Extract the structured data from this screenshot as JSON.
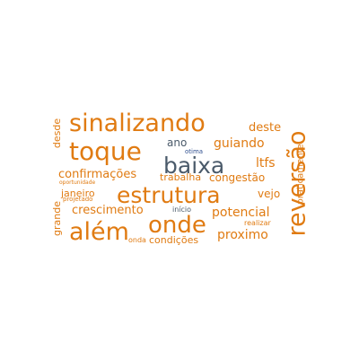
{
  "colors": {
    "orange": "#e07b12",
    "slate": "#4a5a6a",
    "navy": "#2f4f8f",
    "background": "#ffffff"
  },
  "words": {
    "sinalizando": "sinalizando",
    "deste": "deste",
    "toque": "toque",
    "ano": "ano",
    "guiando": "guiando",
    "desde": "desde",
    "otima": "otima",
    "baixa": "baixa",
    "ltfs": "ltfs",
    "reversao": "reversão",
    "praticamente": "praticamente",
    "confirmacoes": "confirmações",
    "trabalha": "trabalha",
    "congestao": "congestão",
    "oportunidade": "oportunidade",
    "janeiro": "janeiro",
    "estrutura": "estrutura",
    "vejo": "vejo",
    "projetado": "projetado",
    "crescimento": "crescimento",
    "inicio": "início",
    "potencial": "potencial",
    "grande": "grande",
    "onde": "onde",
    "realizar": "realizar",
    "alem": "além",
    "proximo": "proximo",
    "onda": "onda",
    "condicoes": "condições"
  }
}
